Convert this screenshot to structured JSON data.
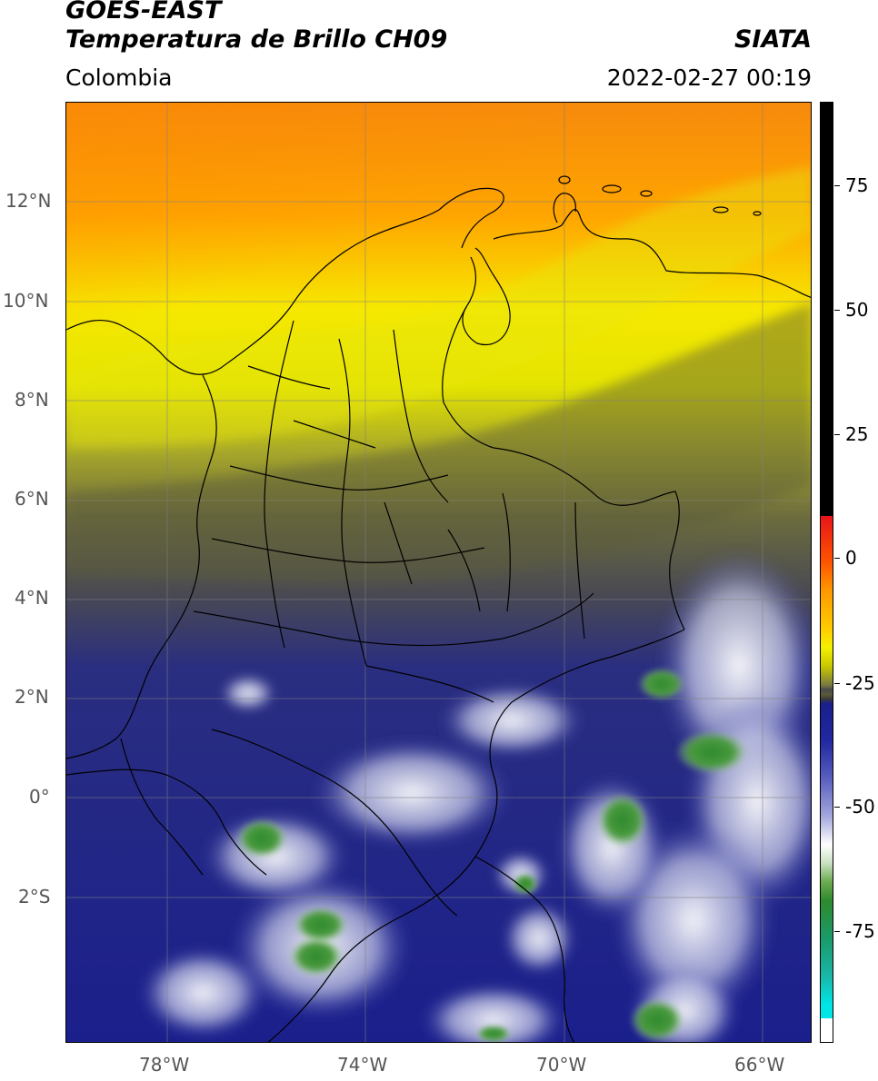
{
  "header": {
    "title_line1": "GOES-EAST",
    "title_line2": "Temperatura de Brillo CH09",
    "brand": "SIATA",
    "region": "Colombia",
    "datetime": "2022-02-27 00:19"
  },
  "map": {
    "lat_labels": [
      "12°N",
      "10°N",
      "8°N",
      "6°N",
      "4°N",
      "2°N",
      "0°",
      "2°S"
    ],
    "lon_labels": [
      "78°W",
      "74°W",
      "70°W",
      "66°W"
    ],
    "grid": true
  },
  "colorbar": {
    "labels": [
      "75",
      "50",
      "25",
      "0",
      "-25",
      "-50",
      "-75"
    ],
    "colors": {
      "black": "#000000",
      "red": "#e8141a",
      "orange": "#ff8c00",
      "yellow": "#f4f000",
      "olive": "#5a5a3a",
      "navy": "#1a1f8c",
      "white": "#ffffff",
      "green": "#2e8a2e",
      "teal": "#1ab6a8",
      "cyan": "#00e5e5"
    }
  }
}
